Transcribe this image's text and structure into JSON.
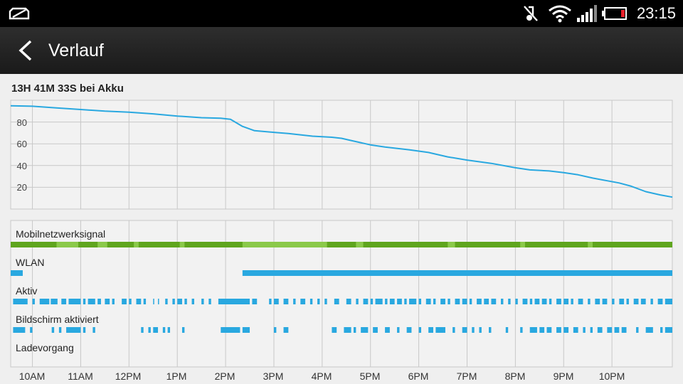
{
  "status_bar": {
    "time": "23:15",
    "icons": [
      "notification-icon",
      "silent-mode-icon",
      "wifi-icon",
      "signal-icon",
      "battery-low-icon"
    ],
    "battery_color": "#e8202a"
  },
  "action_bar": {
    "title": "Verlauf",
    "back_icon": "back-chevron-icon"
  },
  "summary": "13H 41M 33S bei Akku",
  "chart_data": {
    "type": "line",
    "x_tick_labels": [
      "10AM",
      "11AM",
      "12PM",
      "1PM",
      "2PM",
      "3PM",
      "4PM",
      "5PM",
      "6PM",
      "7PM",
      "8PM",
      "9PM",
      "10PM"
    ],
    "y_tick_labels": [
      "80",
      "60",
      "40",
      "20"
    ],
    "ylim": [
      0,
      100
    ],
    "xlim_hours": [
      9.55,
      23.25
    ],
    "grid": true,
    "line_color": "#29a8e0",
    "battery_series": {
      "x_hours": [
        9.55,
        10.0,
        10.5,
        11.0,
        11.5,
        12.0,
        12.5,
        13.0,
        13.5,
        13.9,
        14.1,
        14.35,
        14.6,
        15.0,
        15.3,
        15.8,
        16.2,
        16.4,
        16.6,
        17.0,
        17.3,
        17.8,
        18.2,
        18.6,
        19.0,
        19.5,
        20.0,
        20.3,
        20.7,
        21.0,
        21.3,
        21.6,
        21.9,
        22.15,
        22.4,
        22.7,
        23.0,
        23.25
      ],
      "values": [
        95,
        94.5,
        93,
        91.5,
        90,
        89,
        87.5,
        85.5,
        84,
        83.5,
        82.5,
        76,
        72,
        70.5,
        69.5,
        67,
        66,
        65,
        63,
        59,
        57,
        54.5,
        52,
        48,
        45,
        42,
        38,
        36,
        35,
        33.5,
        31.5,
        28.5,
        26,
        24,
        21,
        16,
        13,
        11
      ]
    }
  },
  "activity_rows": [
    {
      "label": "Mobilnetzwerksignal",
      "color": "#5fa51d",
      "light_color": "#8bc94a",
      "segments_hours": [
        [
          9.55,
          23.25
        ]
      ],
      "light_segments_hours": [
        [
          10.5,
          10.95
        ],
        [
          11.35,
          11.55
        ],
        [
          12.1,
          12.2
        ],
        [
          13.05,
          13.15
        ],
        [
          14.35,
          16.1
        ],
        [
          16.7,
          16.85
        ],
        [
          18.6,
          18.75
        ],
        [
          20.1,
          20.2
        ],
        [
          21.5,
          21.6
        ]
      ]
    },
    {
      "label": "WLAN",
      "color": "#29a8e0",
      "segments_hours": [
        [
          9.55,
          9.8
        ],
        [
          14.35,
          23.25
        ]
      ]
    },
    {
      "label": "Aktiv",
      "color": "#29a8e0",
      "segments_hours": [
        [
          9.6,
          9.9
        ],
        [
          10.0,
          10.05
        ],
        [
          10.15,
          10.35
        ],
        [
          10.38,
          10.52
        ],
        [
          10.6,
          10.7
        ],
        [
          10.75,
          11.0
        ],
        [
          11.05,
          11.1
        ],
        [
          11.15,
          11.3
        ],
        [
          11.35,
          11.42
        ],
        [
          11.5,
          11.6
        ],
        [
          11.65,
          11.7
        ],
        [
          11.85,
          11.95
        ],
        [
          12.0,
          12.05
        ],
        [
          12.15,
          12.25
        ],
        [
          12.3,
          12.35
        ],
        [
          12.5,
          12.52
        ],
        [
          12.6,
          12.62
        ],
        [
          12.75,
          12.8
        ],
        [
          12.9,
          12.95
        ],
        [
          13.0,
          13.1
        ],
        [
          13.15,
          13.2
        ],
        [
          13.3,
          13.35
        ],
        [
          13.5,
          13.55
        ],
        [
          13.65,
          13.7
        ],
        [
          13.85,
          14.5
        ],
        [
          14.55,
          14.65
        ],
        [
          14.9,
          14.95
        ],
        [
          15.0,
          15.1
        ],
        [
          15.2,
          15.3
        ],
        [
          15.4,
          15.45
        ],
        [
          15.55,
          15.65
        ],
        [
          15.75,
          15.8
        ],
        [
          15.9,
          15.95
        ],
        [
          16.05,
          16.1
        ],
        [
          16.25,
          16.35
        ],
        [
          16.5,
          16.6
        ],
        [
          16.7,
          16.75
        ],
        [
          16.85,
          16.95
        ],
        [
          17.0,
          17.05
        ],
        [
          17.1,
          17.25
        ],
        [
          17.3,
          17.35
        ],
        [
          17.4,
          17.5
        ],
        [
          17.55,
          17.65
        ],
        [
          17.7,
          17.75
        ],
        [
          17.8,
          17.95
        ],
        [
          18.0,
          18.05
        ],
        [
          18.15,
          18.25
        ],
        [
          18.3,
          18.35
        ],
        [
          18.45,
          18.55
        ],
        [
          18.6,
          18.65
        ],
        [
          18.75,
          18.85
        ],
        [
          18.9,
          19.0
        ],
        [
          19.05,
          19.1
        ],
        [
          19.2,
          19.3
        ],
        [
          19.35,
          19.45
        ],
        [
          19.5,
          19.6
        ],
        [
          19.7,
          19.75
        ],
        [
          19.85,
          19.9
        ],
        [
          20.0,
          20.05
        ],
        [
          20.15,
          20.25
        ],
        [
          20.3,
          20.35
        ],
        [
          20.4,
          20.5
        ],
        [
          20.55,
          20.65
        ],
        [
          20.7,
          20.75
        ],
        [
          20.85,
          20.95
        ],
        [
          21.0,
          21.1
        ],
        [
          21.15,
          21.2
        ],
        [
          21.3,
          21.4
        ],
        [
          21.5,
          21.55
        ],
        [
          21.65,
          21.75
        ],
        [
          21.8,
          21.9
        ],
        [
          22.0,
          22.05
        ],
        [
          22.15,
          22.25
        ],
        [
          22.3,
          22.35
        ],
        [
          22.45,
          22.55
        ],
        [
          22.6,
          22.7
        ],
        [
          22.8,
          22.85
        ],
        [
          22.95,
          23.05
        ],
        [
          23.1,
          23.25
        ]
      ]
    },
    {
      "label": "Bildschirm aktiviert",
      "color": "#29a8e0",
      "segments_hours": [
        [
          9.6,
          9.85
        ],
        [
          9.95,
          10.0
        ],
        [
          10.4,
          10.45
        ],
        [
          10.55,
          10.6
        ],
        [
          10.7,
          11.0
        ],
        [
          11.05,
          11.1
        ],
        [
          11.25,
          11.3
        ],
        [
          12.25,
          12.3
        ],
        [
          12.4,
          12.45
        ],
        [
          12.5,
          12.6
        ],
        [
          12.7,
          12.75
        ],
        [
          12.8,
          12.85
        ],
        [
          13.1,
          13.15
        ],
        [
          13.9,
          14.3
        ],
        [
          14.35,
          14.5
        ],
        [
          15.0,
          15.05
        ],
        [
          15.2,
          15.3
        ],
        [
          16.2,
          16.3
        ],
        [
          16.45,
          16.6
        ],
        [
          16.65,
          16.7
        ],
        [
          16.8,
          16.95
        ],
        [
          17.05,
          17.15
        ],
        [
          17.3,
          17.4
        ],
        [
          17.55,
          17.6
        ],
        [
          17.75,
          17.85
        ],
        [
          18.0,
          18.05
        ],
        [
          18.2,
          18.3
        ],
        [
          18.35,
          18.55
        ],
        [
          18.7,
          18.75
        ],
        [
          18.9,
          19.0
        ],
        [
          19.1,
          19.15
        ],
        [
          19.25,
          19.3
        ],
        [
          19.45,
          19.5
        ],
        [
          19.8,
          19.85
        ],
        [
          20.1,
          20.15
        ],
        [
          20.3,
          20.45
        ],
        [
          20.5,
          20.6
        ],
        [
          20.65,
          20.75
        ],
        [
          20.85,
          20.95
        ],
        [
          21.0,
          21.1
        ],
        [
          21.2,
          21.3
        ],
        [
          21.4,
          21.45
        ],
        [
          21.55,
          21.6
        ],
        [
          21.7,
          21.8
        ],
        [
          21.9,
          22.0
        ],
        [
          22.05,
          22.15
        ],
        [
          22.2,
          22.3
        ],
        [
          22.5,
          22.55
        ],
        [
          22.7,
          22.85
        ],
        [
          23.0,
          23.05
        ],
        [
          23.1,
          23.25
        ]
      ]
    },
    {
      "label": "Ladevorgang",
      "color": "#29a8e0",
      "segments_hours": []
    }
  ]
}
